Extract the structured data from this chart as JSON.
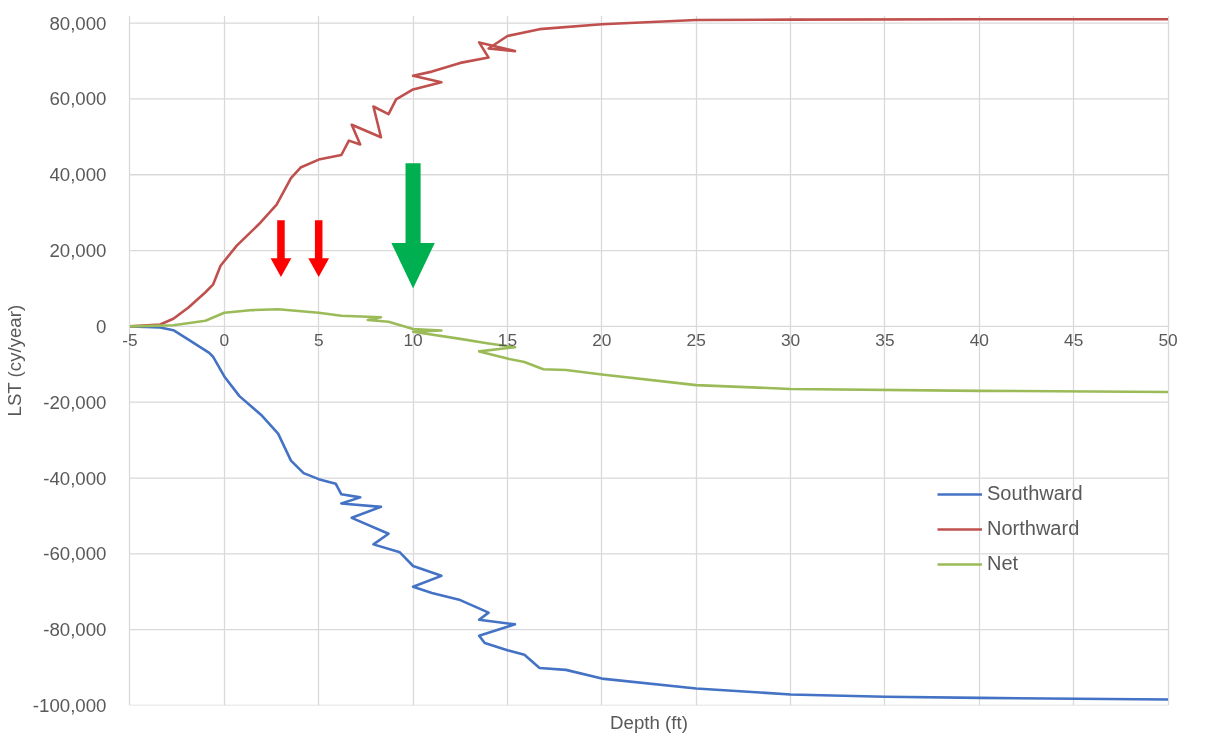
{
  "chart_data": {
    "type": "line",
    "xlabel": "Depth (ft)",
    "ylabel": "LST (cy/year)",
    "xlim": [
      -5,
      50
    ],
    "xticks": [
      -5,
      0,
      5,
      10,
      15,
      20,
      25,
      30,
      35,
      40,
      45,
      50
    ],
    "ylim": [
      -100000,
      82000
    ],
    "yticks": [
      {
        "value": -100000,
        "label": "-100,000"
      },
      {
        "value": -80000,
        "label": "-80,000"
      },
      {
        "value": -60000,
        "label": "-60,000"
      },
      {
        "value": -40000,
        "label": "-40,000"
      },
      {
        "value": -20000,
        "label": "-20,000"
      },
      0,
      {
        "value": 20000,
        "label": "20,000"
      },
      {
        "value": 40000,
        "label": "40,000"
      },
      {
        "value": 60000,
        "label": "60,000"
      },
      {
        "value": 80000,
        "label": "80,000"
      }
    ],
    "grid": true,
    "legend": "right",
    "marker": "none",
    "line_style": "solid",
    "series": [
      {
        "name": "Southward",
        "color": "#4472c4",
        "x": [
          -5,
          -3.4,
          -2.7,
          -1.9,
          -0.8,
          -0.6,
          0,
          0.8,
          2.0,
          2.85,
          3.53,
          4.2,
          5,
          5.9,
          6.2,
          7.2,
          6.2,
          8.3,
          6.75,
          8.7,
          7.9,
          9.3,
          10,
          11.5,
          10,
          11,
          12.5,
          14,
          13.5,
          15.4,
          13.5,
          13.8,
          15,
          15.9,
          16.7,
          18.1,
          20,
          25,
          30,
          35,
          40,
          50
        ],
        "values": [
          0,
          -300,
          -1000,
          -3500,
          -7000,
          -8000,
          -13200,
          -18400,
          -23600,
          -28300,
          -35400,
          -38700,
          -40300,
          -41500,
          -44300,
          -45100,
          -46700,
          -47600,
          -50500,
          -54700,
          -57500,
          -59600,
          -63200,
          -65800,
          -68700,
          -70300,
          -72200,
          -75500,
          -77400,
          -78600,
          -81600,
          -83500,
          -85400,
          -86600,
          -90100,
          -90600,
          -92900,
          -95500,
          -97100,
          -97700,
          -98000,
          -98400
        ]
      },
      {
        "name": "Northward",
        "color": "#c0504d",
        "x": [
          -5,
          -3.4,
          -2.7,
          -1.9,
          -1.0,
          -0.6,
          -0.2,
          0.66,
          1.84,
          2.77,
          3.53,
          4.04,
          5,
          6.2,
          6.6,
          7.2,
          6.75,
          8.3,
          7.9,
          8.7,
          9.1,
          10,
          11.5,
          10,
          11,
          12.5,
          14,
          13.5,
          15.4,
          14,
          15,
          16.7,
          20,
          25,
          30,
          40,
          50
        ],
        "values": [
          0,
          500,
          2000,
          5000,
          9000,
          11000,
          16000,
          21300,
          27000,
          32100,
          39100,
          41900,
          44000,
          45200,
          49000,
          48000,
          53200,
          49900,
          58000,
          56000,
          59900,
          62500,
          64400,
          66100,
          67200,
          69500,
          70900,
          74900,
          72600,
          73300,
          76600,
          78400,
          79700,
          80800,
          80900,
          81000,
          81000
        ]
      },
      {
        "name": "Net",
        "color": "#9bbb59",
        "x": [
          -5,
          -2.7,
          -1.0,
          0,
          1.5,
          2.85,
          5,
          6.2,
          8.3,
          7.6,
          8.7,
          10,
          11.5,
          10,
          12.5,
          14,
          15.4,
          13.5,
          15,
          15.9,
          16.9,
          18.1,
          20,
          25,
          30,
          40,
          50
        ],
        "values": [
          0,
          300,
          1500,
          3600,
          4300,
          4500,
          3600,
          2800,
          2400,
          1700,
          1200,
          -700,
          -1100,
          -1400,
          -3300,
          -4500,
          -5500,
          -6600,
          -8500,
          -9400,
          -11300,
          -11500,
          -12700,
          -15500,
          -16500,
          -17000,
          -17300
        ]
      }
    ]
  }
}
